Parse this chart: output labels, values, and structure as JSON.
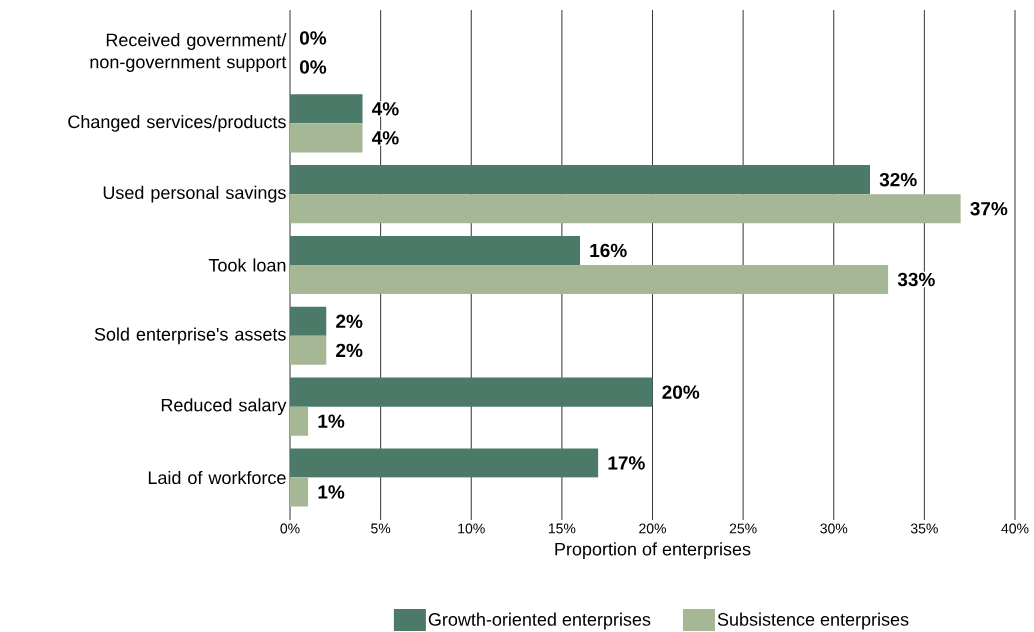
{
  "chart_data": {
    "type": "bar",
    "orientation": "horizontal",
    "xlabel": "Proportion of enterprises",
    "categories": [
      "Received government/non-government support",
      "Changed services/products",
      "Used personal savings",
      "Took loan",
      "Sold enterprise's assets",
      "Reduced salary",
      "Laid of workforce"
    ],
    "series": [
      {
        "name": "Growth-oriented enterprises",
        "color": "#4c7a69",
        "values": [
          0,
          4,
          32,
          16,
          2,
          20,
          17
        ],
        "value_labels": [
          "0%",
          "4%",
          "32%",
          "16%",
          "2%",
          "20%",
          "17%"
        ]
      },
      {
        "name": "Subsistence enterprises",
        "color": "#a5b795",
        "values": [
          0,
          4,
          37,
          33,
          2,
          1,
          1
        ],
        "value_labels": [
          "0%",
          "4%",
          "37%",
          "33%",
          "2%",
          "1%",
          "1%"
        ]
      }
    ],
    "xlim": [
      0,
      40
    ],
    "xticks": [
      {
        "value": 0,
        "label": "0%"
      },
      {
        "value": 5,
        "label": "5%"
      },
      {
        "value": 10,
        "label": "10%"
      },
      {
        "value": 15,
        "label": "15%"
      },
      {
        "value": 20,
        "label": "20%"
      },
      {
        "value": 25,
        "label": "25%"
      },
      {
        "value": 30,
        "label": "30%"
      },
      {
        "value": 35,
        "label": "35%"
      },
      {
        "value": 40,
        "label": "40%"
      }
    ],
    "grid": "x",
    "legend": "bottom"
  }
}
